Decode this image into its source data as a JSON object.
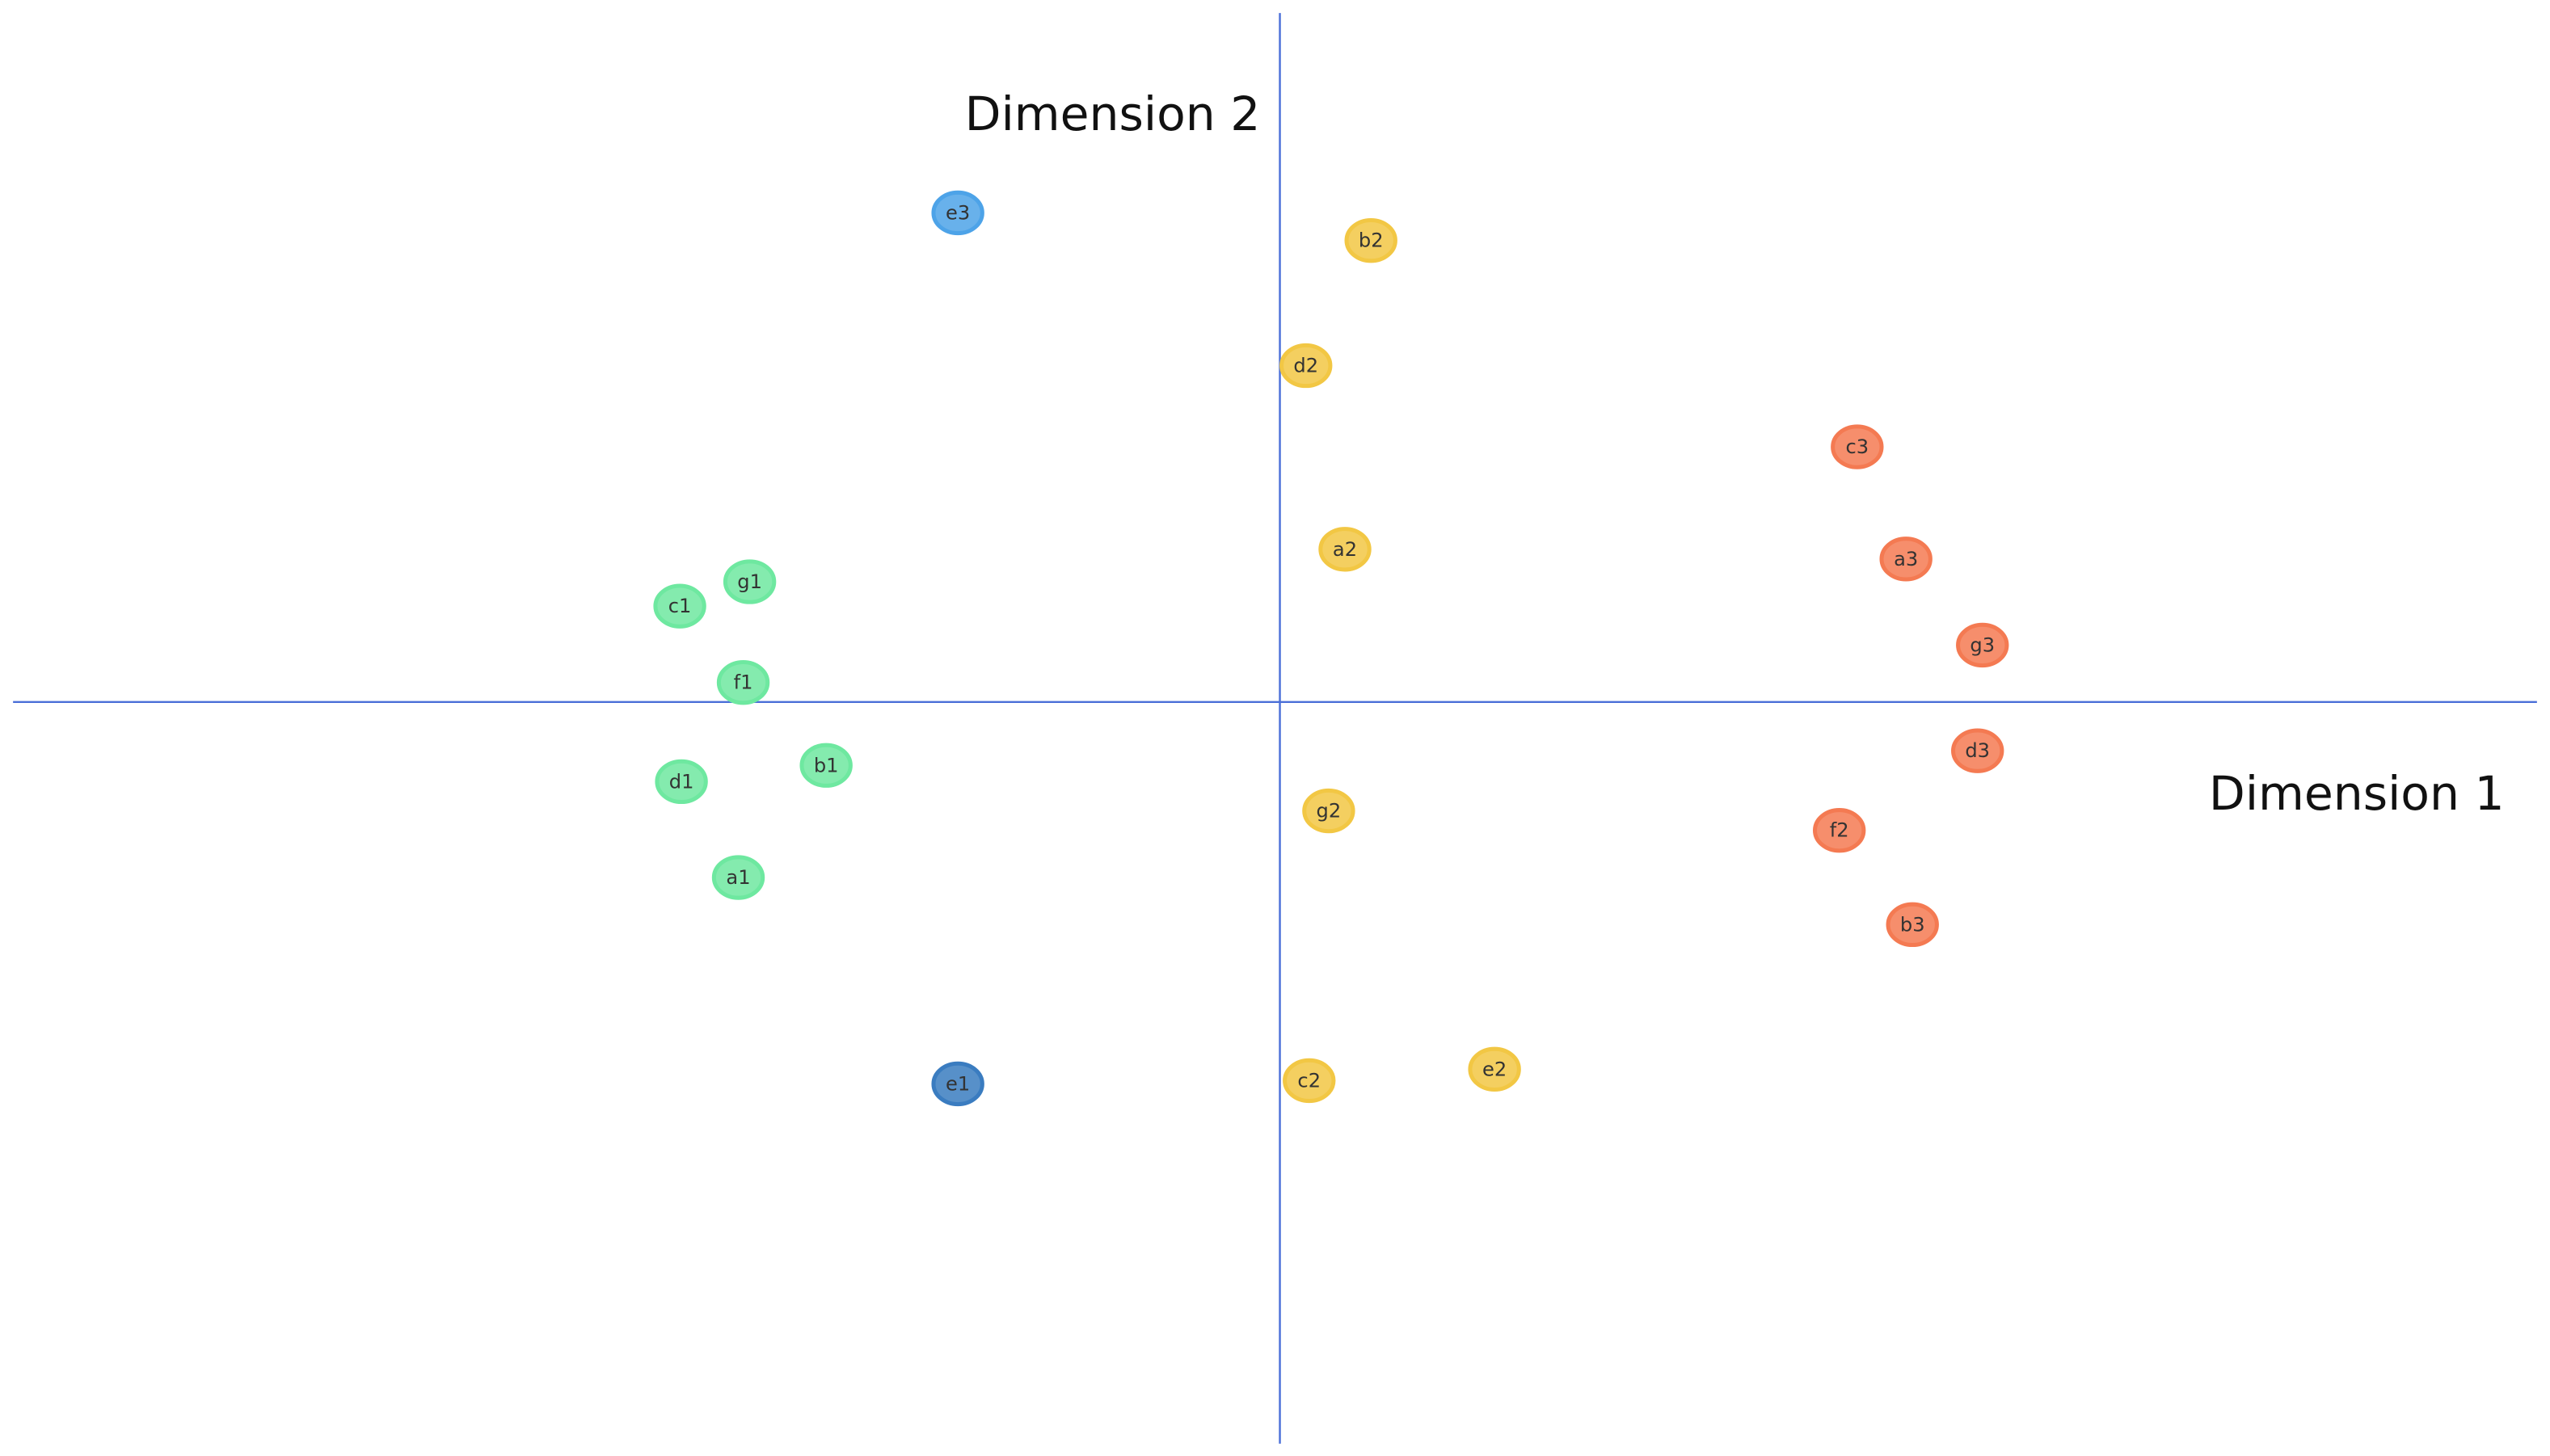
{
  "chart_data": {
    "type": "scatter",
    "x_label": "Dimension 1",
    "y_label": "Dimension 2",
    "xlim": [
      -7.87,
      7.81
    ],
    "ylim": [
      -4.64,
      4.32
    ],
    "points": [
      {
        "label": "e3",
        "x": -1.98,
        "y": 3.01,
        "color": "#4da3e8"
      },
      {
        "label": "b2",
        "x": 0.56,
        "y": 2.84,
        "color": "#f2c744"
      },
      {
        "label": "d2",
        "x": 0.16,
        "y": 2.07,
        "color": "#f2c744"
      },
      {
        "label": "c3",
        "x": 3.55,
        "y": 1.57,
        "color": "#f47a52"
      },
      {
        "label": "a2",
        "x": 0.4,
        "y": 0.94,
        "color": "#f2c744"
      },
      {
        "label": "a3",
        "x": 3.85,
        "y": 0.88,
        "color": "#f47a52"
      },
      {
        "label": "g3",
        "x": 4.32,
        "y": 0.35,
        "color": "#f47a52"
      },
      {
        "label": "g1",
        "x": -3.26,
        "y": 0.74,
        "color": "#6ee8a0"
      },
      {
        "label": "c1",
        "x": -3.69,
        "y": 0.59,
        "color": "#6ee8a0"
      },
      {
        "label": "f1",
        "x": -3.3,
        "y": 0.12,
        "color": "#6ee8a0"
      },
      {
        "label": "d3",
        "x": 4.29,
        "y": -0.3,
        "color": "#f47a52"
      },
      {
        "label": "b1",
        "x": -2.79,
        "y": -0.39,
        "color": "#6ee8a0"
      },
      {
        "label": "d1",
        "x": -3.68,
        "y": -0.49,
        "color": "#6ee8a0"
      },
      {
        "label": "g2",
        "x": 0.3,
        "y": -0.67,
        "color": "#f2c744"
      },
      {
        "label": "f2",
        "x": 3.44,
        "y": -0.79,
        "color": "#f47a52"
      },
      {
        "label": "a1",
        "x": -3.33,
        "y": -1.08,
        "color": "#6ee8a0"
      },
      {
        "label": "b3",
        "x": 3.89,
        "y": -1.37,
        "color": "#f47a52"
      },
      {
        "label": "e1",
        "x": -1.98,
        "y": -2.35,
        "color": "#3a7cc0"
      },
      {
        "label": "c2",
        "x": 0.18,
        "y": -2.33,
        "color": "#f2c744"
      },
      {
        "label": "e2",
        "x": 1.32,
        "y": -2.26,
        "color": "#f2c744"
      }
    ]
  }
}
